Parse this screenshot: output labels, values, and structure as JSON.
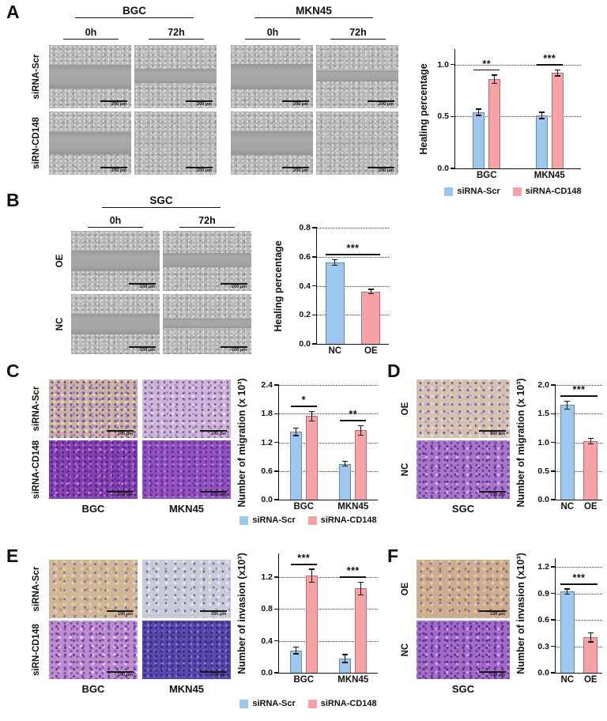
{
  "colors": {
    "blue": "#9cc7ef",
    "pink": "#f9a2a6"
  },
  "panels": {
    "A": {
      "label": "A",
      "group_headers": [
        "BGC",
        "MKN45"
      ],
      "time_headers": [
        "0h",
        "72h"
      ],
      "row_labels": [
        "siRNA-Scr",
        "siRN-CD148"
      ],
      "scale_bar": "200 μm",
      "chart": {
        "type": "bar",
        "ylabel": "Healing percentage",
        "ymax": 1.15,
        "yticks": [
          {
            "v": 0,
            "label": "0.0"
          },
          {
            "v": 0.5,
            "label": "0.5"
          },
          {
            "v": 1,
            "label": "1.0"
          }
        ],
        "groups": [
          {
            "label": "BGC",
            "sig": "**",
            "bars": [
              {
                "series": "siRNA-Scr",
                "value": 0.54,
                "err": 0.03,
                "color": "blue"
              },
              {
                "series": "siRNA-CD148",
                "value": 0.86,
                "err": 0.04,
                "color": "pink"
              }
            ]
          },
          {
            "label": "MKN45",
            "sig": "***",
            "bars": [
              {
                "series": "siRNA-Scr",
                "value": 0.51,
                "err": 0.03,
                "color": "blue"
              },
              {
                "series": "siRNA-CD148",
                "value": 0.92,
                "err": 0.03,
                "color": "pink"
              }
            ]
          }
        ],
        "legend": [
          {
            "label": "siRNA-Scr",
            "color": "blue"
          },
          {
            "label": "siRNA-CD148",
            "color": "pink"
          }
        ]
      }
    },
    "B": {
      "label": "B",
      "group_headers": [
        "SGC"
      ],
      "time_headers": [
        "0h",
        "72h"
      ],
      "row_labels": [
        "OE",
        "NC"
      ],
      "scale_bar": "200 μm",
      "chart": {
        "type": "bar",
        "ylabel": "Healing percentage",
        "ymax": 0.8,
        "yticks": [
          {
            "v": 0,
            "label": "0.0"
          },
          {
            "v": 0.2,
            "label": "0.2"
          },
          {
            "v": 0.4,
            "label": "0.4"
          },
          {
            "v": 0.6,
            "label": "0.6"
          },
          {
            "v": 0.8,
            "label": "0.8"
          }
        ],
        "sig": "***",
        "groups": [
          {
            "label": "NC",
            "bars": [
              {
                "value": 0.56,
                "err": 0.02,
                "color": "blue"
              }
            ]
          },
          {
            "label": "OE",
            "bars": [
              {
                "value": 0.36,
                "err": 0.015,
                "color": "pink"
              }
            ]
          }
        ]
      }
    },
    "C": {
      "label": "C",
      "row_labels": [
        "siRNA-Scr",
        "siRNA-CD148"
      ],
      "col_labels": [
        "BGC",
        "MKN45"
      ],
      "scale_bar": "100 μm",
      "chart": {
        "type": "bar",
        "ylabel": "Number of migration (x 10³)",
        "ymax": 2.4,
        "yticks": [
          {
            "v": 0,
            "label": "0.0"
          },
          {
            "v": 0.6,
            "label": "0.6"
          },
          {
            "v": 1.2,
            "label": "1.2"
          },
          {
            "v": 1.8,
            "label": "1.8"
          },
          {
            "v": 2.4,
            "label": "2.4"
          }
        ],
        "groups": [
          {
            "label": "BGC",
            "sig": "*",
            "bars": [
              {
                "series": "siRNA-Scr",
                "value": 1.42,
                "err": 0.08,
                "color": "blue"
              },
              {
                "series": "siRNA-CD148",
                "value": 1.75,
                "err": 0.1,
                "color": "pink"
              }
            ]
          },
          {
            "label": "MKN45",
            "sig": "**",
            "bars": [
              {
                "series": "siRNA-Scr",
                "value": 0.75,
                "err": 0.05,
                "color": "blue"
              },
              {
                "series": "siRNA-CD148",
                "value": 1.45,
                "err": 0.1,
                "color": "pink"
              }
            ]
          }
        ],
        "legend": [
          {
            "label": "siRNA-Scr",
            "color": "blue"
          },
          {
            "label": "siRNA-CD148",
            "color": "pink"
          }
        ]
      }
    },
    "D": {
      "label": "D",
      "row_labels": [
        "OE",
        "NC"
      ],
      "col_labels": [
        "SGC"
      ],
      "scale_bar": "100 μm",
      "chart": {
        "type": "bar",
        "ylabel": "Number of migration (x 10³)",
        "ymax": 2.0,
        "yticks": [
          {
            "v": 0,
            "label": "0.0"
          },
          {
            "v": 0.5,
            "label": "0.5"
          },
          {
            "v": 1,
            "label": "1.0"
          },
          {
            "v": 1.5,
            "label": "1.5"
          },
          {
            "v": 2,
            "label": "2.0"
          }
        ],
        "sig": "***",
        "groups": [
          {
            "label": "NC",
            "bars": [
              {
                "value": 1.65,
                "err": 0.07,
                "color": "blue"
              }
            ]
          },
          {
            "label": "OE",
            "bars": [
              {
                "value": 1.02,
                "err": 0.05,
                "color": "pink"
              }
            ]
          }
        ]
      }
    },
    "E": {
      "label": "E",
      "row_labels": [
        "siRNA-Scr",
        "siRN-CD148"
      ],
      "col_labels": [
        "BGC",
        "MKN45"
      ],
      "scale_bar": "100 μm",
      "chart": {
        "type": "bar",
        "ylabel": "Number of invasion (x10³)",
        "ymax": 1.5,
        "yticks": [
          {
            "v": 0,
            "label": "0.0"
          },
          {
            "v": 0.4,
            "label": "0.4"
          },
          {
            "v": 0.8,
            "label": "0.8"
          },
          {
            "v": 1.2,
            "label": "1.2"
          }
        ],
        "groups": [
          {
            "label": "BGC",
            "sig": "***",
            "bars": [
              {
                "series": "siRNA-Scr",
                "value": 0.28,
                "err": 0.04,
                "color": "blue"
              },
              {
                "series": "siRNA-CD148",
                "value": 1.22,
                "err": 0.08,
                "color": "pink"
              }
            ]
          },
          {
            "label": "MKN45",
            "sig": "***",
            "bars": [
              {
                "series": "siRNA-Scr",
                "value": 0.18,
                "err": 0.05,
                "color": "blue"
              },
              {
                "series": "siRNA-CD148",
                "value": 1.06,
                "err": 0.08,
                "color": "pink"
              }
            ]
          }
        ],
        "legend": [
          {
            "label": "siRNA-Scr",
            "color": "blue"
          },
          {
            "label": "siRNA-CD148",
            "color": "pink"
          }
        ]
      }
    },
    "F": {
      "label": "F",
      "row_labels": [
        "OE",
        "NC"
      ],
      "col_labels": [
        "SGC"
      ],
      "scale_bar": "100 μm",
      "chart": {
        "type": "bar",
        "ylabel": "Number of invasion (x10³)",
        "ymax": 1.3,
        "yticks": [
          {
            "v": 0,
            "label": "0.0"
          },
          {
            "v": 0.3,
            "label": "0.3"
          },
          {
            "v": 0.6,
            "label": "0.6"
          },
          {
            "v": 0.9,
            "label": "0.9"
          },
          {
            "v": 1.2,
            "label": "1.2"
          }
        ],
        "sig": "***",
        "groups": [
          {
            "label": "NC",
            "bars": [
              {
                "value": 0.92,
                "err": 0.03,
                "color": "blue"
              }
            ]
          },
          {
            "label": "OE",
            "bars": [
              {
                "value": 0.4,
                "err": 0.05,
                "color": "pink"
              }
            ]
          }
        ]
      }
    }
  }
}
